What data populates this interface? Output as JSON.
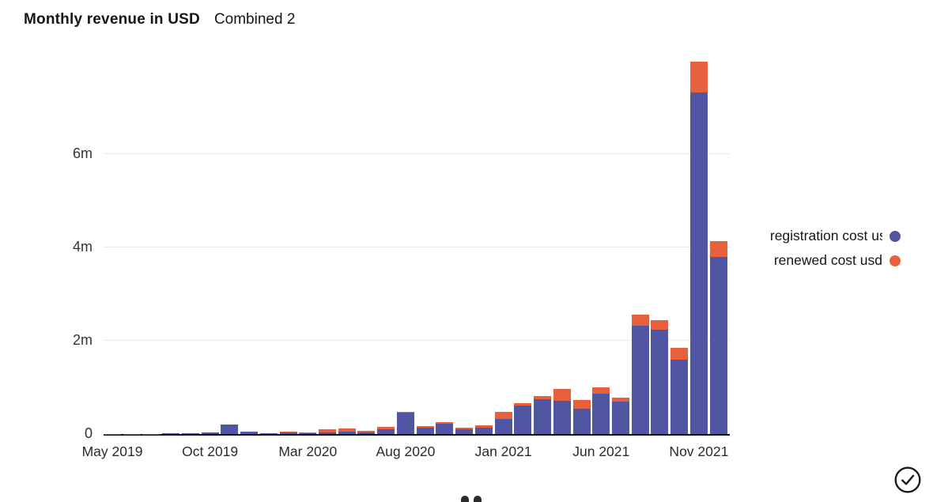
{
  "page": {
    "title": "Monthly revenue in USD",
    "subtitle": "Combined 2"
  },
  "legend": {
    "items": [
      {
        "label": "registration cost u",
        "clipped": "s",
        "series": "registration cost usd",
        "color": "#5056a4"
      },
      {
        "label": "renewed cost usd",
        "clipped": "",
        "series": "renewed cost usd",
        "color": "#e6603d"
      }
    ]
  },
  "chart_data": {
    "type": "bar",
    "stacked": true,
    "title": "Monthly revenue in USD",
    "subtitle": "Combined 2",
    "unit": "millions USD",
    "grid": "horizontal",
    "legend_position": "right",
    "ylim": [
      0,
      8
    ],
    "yticks": [
      {
        "label": "0",
        "value": 0
      },
      {
        "label": "2m",
        "value": 2
      },
      {
        "label": "4m",
        "value": 4
      },
      {
        "label": "6m",
        "value": 6
      }
    ],
    "xticks": [
      {
        "label": "May 2019",
        "month": 0
      },
      {
        "label": "Oct 2019",
        "month": 5
      },
      {
        "label": "Mar 2020",
        "month": 10
      },
      {
        "label": "Aug 2020",
        "month": 15
      },
      {
        "label": "Jan 2021",
        "month": 20
      },
      {
        "label": "Jun 2021",
        "month": 25
      },
      {
        "label": "Nov 2021",
        "month": 30
      }
    ],
    "categories": [
      "May 2019",
      "Jun 2019",
      "Jul 2019",
      "Aug 2019",
      "Sep 2019",
      "Oct 2019",
      "Nov 2019",
      "Dec 2019",
      "Jan 2020",
      "Feb 2020",
      "Mar 2020",
      "Apr 2020",
      "May 2020",
      "Jun 2020",
      "Jul 2020",
      "Aug 2020",
      "Sep 2020",
      "Oct 2020",
      "Nov 2020",
      "Dec 2020",
      "Jan 2021",
      "Feb 2021",
      "Mar 2021",
      "Apr 2021",
      "May 2021",
      "Jun 2021",
      "Jul 2021",
      "Aug 2021",
      "Sep 2021",
      "Oct 2021",
      "Nov 2021",
      "Dec 2021"
    ],
    "series": [
      {
        "name": "registration cost usd",
        "color": "#5056a4",
        "values": [
          0.005,
          0.005,
          0.005,
          0.01,
          0.01,
          0.03,
          0.2,
          0.05,
          0.02,
          0.03,
          0.02,
          0.03,
          0.05,
          0.04,
          0.1,
          0.45,
          0.13,
          0.22,
          0.11,
          0.13,
          0.32,
          0.61,
          0.74,
          0.72,
          0.54,
          0.87,
          0.7,
          2.32,
          2.24,
          1.6,
          7.32,
          3.8
        ]
      },
      {
        "name": "renewed cost usd",
        "color": "#e6603d",
        "values": [
          0,
          0,
          0,
          0,
          0,
          0,
          0.005,
          0.005,
          0.005,
          0.02,
          0.02,
          0.07,
          0.07,
          0.02,
          0.06,
          0.03,
          0.04,
          0.04,
          0.03,
          0.05,
          0.16,
          0.06,
          0.08,
          0.24,
          0.19,
          0.13,
          0.08,
          0.24,
          0.2,
          0.25,
          0.66,
          0.33
        ]
      }
    ]
  }
}
